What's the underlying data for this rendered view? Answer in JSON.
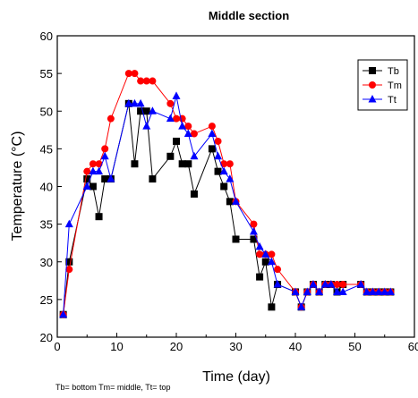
{
  "chart_data": {
    "type": "line",
    "title": "Middle section",
    "xlabel": "Time (day)",
    "ylabel": "Temperature (°C)",
    "xlim": [
      0,
      60
    ],
    "ylim": [
      20,
      60
    ],
    "xticks": [
      0,
      10,
      20,
      30,
      40,
      50,
      60
    ],
    "yticks": [
      20,
      25,
      30,
      35,
      40,
      45,
      50,
      55,
      60
    ],
    "grid": false,
    "legend_position": "top-right",
    "footnote": "Tb= bottom Tm= middle, Tt= top",
    "series": [
      {
        "name": "Tb",
        "color": "#000000",
        "marker": "square",
        "x": [
          1,
          2,
          5,
          6,
          7,
          8,
          9,
          12,
          13,
          14,
          15,
          16,
          19,
          20,
          21,
          22,
          23,
          26,
          27,
          28,
          29,
          30,
          33,
          34,
          35,
          36,
          37,
          40,
          41,
          42,
          43,
          44,
          45,
          46,
          47,
          48,
          51,
          52,
          53,
          54,
          55,
          56
        ],
        "y": [
          23,
          30,
          41,
          40,
          36,
          41,
          41,
          51,
          43,
          50,
          50,
          41,
          44,
          46,
          43,
          43,
          39,
          45,
          42,
          40,
          38,
          33,
          33,
          28,
          30,
          24,
          27,
          26,
          24,
          26,
          27,
          26,
          27,
          27,
          26,
          27,
          27,
          26,
          26,
          26,
          26,
          26
        ]
      },
      {
        "name": "Tm",
        "color": "#ff0000",
        "marker": "circle",
        "x": [
          1,
          2,
          5,
          6,
          7,
          8,
          9,
          12,
          13,
          14,
          15,
          16,
          19,
          20,
          21,
          22,
          23,
          26,
          27,
          28,
          29,
          30,
          33,
          34,
          35,
          36,
          37,
          40,
          41,
          42,
          43,
          44,
          45,
          46,
          47,
          48,
          51,
          52,
          53,
          54,
          55,
          56
        ],
        "y": [
          23,
          29,
          42,
          43,
          43,
          45,
          49,
          55,
          55,
          54,
          54,
          54,
          51,
          49,
          49,
          48,
          47,
          48,
          46,
          43,
          43,
          38,
          35,
          31,
          31,
          31,
          29,
          26,
          24,
          26,
          27,
          26,
          27,
          27,
          27,
          27,
          27,
          26,
          26,
          26,
          26,
          26
        ]
      },
      {
        "name": "Tt",
        "color": "#0000ff",
        "marker": "triangle",
        "x": [
          1,
          2,
          5,
          6,
          7,
          8,
          9,
          12,
          13,
          14,
          15,
          16,
          19,
          20,
          21,
          22,
          23,
          26,
          27,
          28,
          29,
          30,
          33,
          34,
          35,
          36,
          37,
          40,
          41,
          42,
          43,
          44,
          45,
          46,
          47,
          48,
          51,
          52,
          53,
          54,
          55,
          56
        ],
        "y": [
          23,
          35,
          40,
          42,
          42,
          44,
          41,
          51,
          51,
          51,
          48,
          50,
          49,
          52,
          48,
          47,
          44,
          47,
          44,
          42,
          41,
          38,
          34,
          32,
          31,
          30,
          27,
          26,
          24,
          26,
          27,
          26,
          27,
          27,
          26,
          26,
          27,
          26,
          26,
          26,
          26,
          26
        ]
      }
    ]
  }
}
